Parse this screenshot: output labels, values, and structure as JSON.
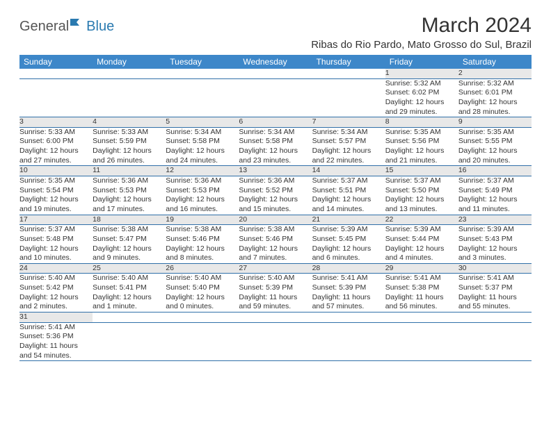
{
  "logo": {
    "text1": "General",
    "text2": "Blue"
  },
  "title": "March 2024",
  "location": "Ribas do Rio Pardo, Mato Grosso do Sul, Brazil",
  "colors": {
    "header_bg": "#3d87c9",
    "header_text": "#ffffff",
    "daynum_bg": "#e8e8e8",
    "row_border": "#2f6fa8",
    "text": "#333333",
    "logo_blue": "#2a7ab0"
  },
  "weekdays": [
    "Sunday",
    "Monday",
    "Tuesday",
    "Wednesday",
    "Thursday",
    "Friday",
    "Saturday"
  ],
  "weeks": [
    [
      null,
      null,
      null,
      null,
      null,
      {
        "n": "1",
        "sr": "Sunrise: 5:32 AM",
        "ss": "Sunset: 6:02 PM",
        "d1": "Daylight: 12 hours",
        "d2": "and 29 minutes."
      },
      {
        "n": "2",
        "sr": "Sunrise: 5:32 AM",
        "ss": "Sunset: 6:01 PM",
        "d1": "Daylight: 12 hours",
        "d2": "and 28 minutes."
      }
    ],
    [
      {
        "n": "3",
        "sr": "Sunrise: 5:33 AM",
        "ss": "Sunset: 6:00 PM",
        "d1": "Daylight: 12 hours",
        "d2": "and 27 minutes."
      },
      {
        "n": "4",
        "sr": "Sunrise: 5:33 AM",
        "ss": "Sunset: 5:59 PM",
        "d1": "Daylight: 12 hours",
        "d2": "and 26 minutes."
      },
      {
        "n": "5",
        "sr": "Sunrise: 5:34 AM",
        "ss": "Sunset: 5:58 PM",
        "d1": "Daylight: 12 hours",
        "d2": "and 24 minutes."
      },
      {
        "n": "6",
        "sr": "Sunrise: 5:34 AM",
        "ss": "Sunset: 5:58 PM",
        "d1": "Daylight: 12 hours",
        "d2": "and 23 minutes."
      },
      {
        "n": "7",
        "sr": "Sunrise: 5:34 AM",
        "ss": "Sunset: 5:57 PM",
        "d1": "Daylight: 12 hours",
        "d2": "and 22 minutes."
      },
      {
        "n": "8",
        "sr": "Sunrise: 5:35 AM",
        "ss": "Sunset: 5:56 PM",
        "d1": "Daylight: 12 hours",
        "d2": "and 21 minutes."
      },
      {
        "n": "9",
        "sr": "Sunrise: 5:35 AM",
        "ss": "Sunset: 5:55 PM",
        "d1": "Daylight: 12 hours",
        "d2": "and 20 minutes."
      }
    ],
    [
      {
        "n": "10",
        "sr": "Sunrise: 5:35 AM",
        "ss": "Sunset: 5:54 PM",
        "d1": "Daylight: 12 hours",
        "d2": "and 19 minutes."
      },
      {
        "n": "11",
        "sr": "Sunrise: 5:36 AM",
        "ss": "Sunset: 5:53 PM",
        "d1": "Daylight: 12 hours",
        "d2": "and 17 minutes."
      },
      {
        "n": "12",
        "sr": "Sunrise: 5:36 AM",
        "ss": "Sunset: 5:53 PM",
        "d1": "Daylight: 12 hours",
        "d2": "and 16 minutes."
      },
      {
        "n": "13",
        "sr": "Sunrise: 5:36 AM",
        "ss": "Sunset: 5:52 PM",
        "d1": "Daylight: 12 hours",
        "d2": "and 15 minutes."
      },
      {
        "n": "14",
        "sr": "Sunrise: 5:37 AM",
        "ss": "Sunset: 5:51 PM",
        "d1": "Daylight: 12 hours",
        "d2": "and 14 minutes."
      },
      {
        "n": "15",
        "sr": "Sunrise: 5:37 AM",
        "ss": "Sunset: 5:50 PM",
        "d1": "Daylight: 12 hours",
        "d2": "and 13 minutes."
      },
      {
        "n": "16",
        "sr": "Sunrise: 5:37 AM",
        "ss": "Sunset: 5:49 PM",
        "d1": "Daylight: 12 hours",
        "d2": "and 11 minutes."
      }
    ],
    [
      {
        "n": "17",
        "sr": "Sunrise: 5:37 AM",
        "ss": "Sunset: 5:48 PM",
        "d1": "Daylight: 12 hours",
        "d2": "and 10 minutes."
      },
      {
        "n": "18",
        "sr": "Sunrise: 5:38 AM",
        "ss": "Sunset: 5:47 PM",
        "d1": "Daylight: 12 hours",
        "d2": "and 9 minutes."
      },
      {
        "n": "19",
        "sr": "Sunrise: 5:38 AM",
        "ss": "Sunset: 5:46 PM",
        "d1": "Daylight: 12 hours",
        "d2": "and 8 minutes."
      },
      {
        "n": "20",
        "sr": "Sunrise: 5:38 AM",
        "ss": "Sunset: 5:46 PM",
        "d1": "Daylight: 12 hours",
        "d2": "and 7 minutes."
      },
      {
        "n": "21",
        "sr": "Sunrise: 5:39 AM",
        "ss": "Sunset: 5:45 PM",
        "d1": "Daylight: 12 hours",
        "d2": "and 6 minutes."
      },
      {
        "n": "22",
        "sr": "Sunrise: 5:39 AM",
        "ss": "Sunset: 5:44 PM",
        "d1": "Daylight: 12 hours",
        "d2": "and 4 minutes."
      },
      {
        "n": "23",
        "sr": "Sunrise: 5:39 AM",
        "ss": "Sunset: 5:43 PM",
        "d1": "Daylight: 12 hours",
        "d2": "and 3 minutes."
      }
    ],
    [
      {
        "n": "24",
        "sr": "Sunrise: 5:40 AM",
        "ss": "Sunset: 5:42 PM",
        "d1": "Daylight: 12 hours",
        "d2": "and 2 minutes."
      },
      {
        "n": "25",
        "sr": "Sunrise: 5:40 AM",
        "ss": "Sunset: 5:41 PM",
        "d1": "Daylight: 12 hours",
        "d2": "and 1 minute."
      },
      {
        "n": "26",
        "sr": "Sunrise: 5:40 AM",
        "ss": "Sunset: 5:40 PM",
        "d1": "Daylight: 12 hours",
        "d2": "and 0 minutes."
      },
      {
        "n": "27",
        "sr": "Sunrise: 5:40 AM",
        "ss": "Sunset: 5:39 PM",
        "d1": "Daylight: 11 hours",
        "d2": "and 59 minutes."
      },
      {
        "n": "28",
        "sr": "Sunrise: 5:41 AM",
        "ss": "Sunset: 5:39 PM",
        "d1": "Daylight: 11 hours",
        "d2": "and 57 minutes."
      },
      {
        "n": "29",
        "sr": "Sunrise: 5:41 AM",
        "ss": "Sunset: 5:38 PM",
        "d1": "Daylight: 11 hours",
        "d2": "and 56 minutes."
      },
      {
        "n": "30",
        "sr": "Sunrise: 5:41 AM",
        "ss": "Sunset: 5:37 PM",
        "d1": "Daylight: 11 hours",
        "d2": "and 55 minutes."
      }
    ],
    [
      {
        "n": "31",
        "sr": "Sunrise: 5:41 AM",
        "ss": "Sunset: 5:36 PM",
        "d1": "Daylight: 11 hours",
        "d2": "and 54 minutes."
      },
      null,
      null,
      null,
      null,
      null,
      null
    ]
  ]
}
